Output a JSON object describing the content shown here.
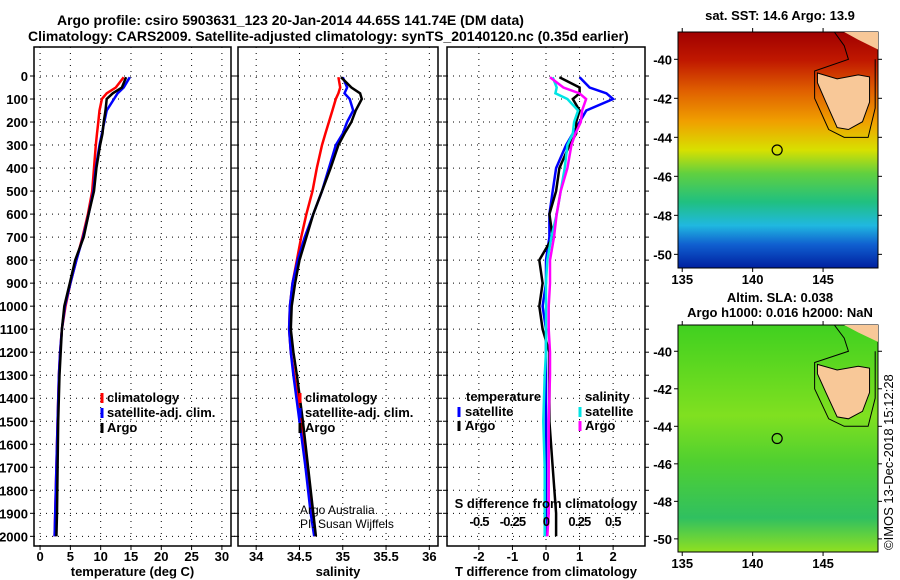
{
  "title_line1": "Argo profile: csiro 5903631_123 20-Jan-2014 44.65S 141.74E (DM data)",
  "title_line2": "Climatology: CARS2009. Satellite-adjusted climatology: synTS_20140120.nc (0.35d earlier)",
  "credit_line1": "Argo Australia",
  "credit_line2": "PI: Susan Wijffels",
  "imos_stamp": "©IMOS 13-Dec-2018 15:12:28",
  "colors": {
    "climatology": "#ff0000",
    "satellite": "#0000ff",
    "argo": "#000000",
    "s_satellite": "#00e5e5",
    "s_argo": "#ff00ff"
  },
  "chart_data": [
    {
      "type": "line",
      "xlabel": "temperature (deg C)",
      "ylabel": "depth",
      "xlim": [
        -1,
        31.5
      ],
      "ylim": [
        2042,
        -126
      ],
      "xticks": [
        0,
        5,
        10,
        15,
        20,
        25,
        30
      ],
      "yticks": [
        0,
        100,
        200,
        300,
        400,
        500,
        600,
        700,
        800,
        900,
        1000,
        1100,
        1200,
        1300,
        1400,
        1500,
        1600,
        1700,
        1800,
        1900,
        2000
      ],
      "depth": [
        5,
        50,
        75,
        100,
        150,
        200,
        250,
        300,
        400,
        500,
        600,
        700,
        800,
        900,
        1000,
        1100,
        1200,
        1300,
        1500,
        1700,
        1900,
        2000
      ],
      "legend": [
        "climatology",
        "satellite-adj. clim.",
        "Argo"
      ],
      "series": [
        {
          "name": "climatology",
          "color": "#ff0000",
          "values": [
            13.8,
            12.5,
            11.0,
            10.2,
            9.8,
            9.6,
            9.4,
            9.2,
            8.9,
            8.6,
            7.9,
            7.0,
            6.0,
            5.0,
            4.2,
            3.6,
            3.3,
            3.1,
            2.9,
            2.7,
            2.5,
            2.4
          ]
        },
        {
          "name": "satellite-adj. clim.",
          "color": "#0000ff",
          "values": [
            14.8,
            13.8,
            12.8,
            12.2,
            11.0,
            10.6,
            10.2,
            9.8,
            9.2,
            8.8,
            8.0,
            7.1,
            6.0,
            5.0,
            4.1,
            3.6,
            3.3,
            3.1,
            2.9,
            2.7,
            2.5,
            2.4
          ]
        },
        {
          "name": "Argo",
          "color": "#000000",
          "values": [
            14.2,
            13.5,
            12.0,
            11.0,
            10.8,
            10.5,
            10.3,
            9.9,
            9.3,
            8.9,
            8.0,
            7.2,
            5.8,
            4.9,
            4.0,
            3.6,
            3.4,
            3.2,
            3.0,
            2.9,
            2.8,
            2.7
          ]
        }
      ]
    },
    {
      "type": "line",
      "xlabel": "salinity",
      "xlim": [
        33.79,
        36.1
      ],
      "ylim": [
        2042,
        -126
      ],
      "xticks": [
        34,
        34.5,
        35,
        35.5,
        36
      ],
      "depth": [
        5,
        50,
        75,
        100,
        150,
        200,
        250,
        300,
        400,
        500,
        600,
        700,
        800,
        900,
        1000,
        1100,
        1200,
        1300,
        1500,
        1700,
        1900,
        2000
      ],
      "legend": [
        "climatology",
        "satellite-adj. clim.",
        "Argo"
      ],
      "series": [
        {
          "name": "climatology",
          "color": "#ff0000",
          "values": [
            34.95,
            34.97,
            34.95,
            34.92,
            34.88,
            34.84,
            34.8,
            34.76,
            34.7,
            34.65,
            34.58,
            34.52,
            34.47,
            34.42,
            34.39,
            34.38,
            34.4,
            34.44,
            34.52,
            34.58,
            34.64,
            34.68
          ]
        },
        {
          "name": "satellite-adj. clim.",
          "color": "#0000ff",
          "values": [
            35.0,
            35.05,
            35.02,
            35.08,
            35.12,
            35.05,
            35.0,
            34.92,
            34.84,
            34.76,
            34.66,
            34.56,
            34.48,
            34.42,
            34.39,
            34.38,
            34.4,
            34.43,
            34.5,
            34.57,
            34.63,
            34.67
          ]
        },
        {
          "name": "Argo",
          "color": "#000000",
          "values": [
            34.98,
            35.1,
            35.2,
            35.22,
            35.15,
            35.1,
            35.02,
            34.95,
            34.86,
            34.76,
            34.66,
            34.58,
            34.5,
            34.45,
            34.41,
            34.4,
            34.43,
            34.47,
            34.54,
            34.6,
            34.66,
            34.69
          ]
        }
      ]
    },
    {
      "type": "line",
      "xlabel": "T difference from climatology",
      "x2label": "S difference from climatology",
      "xlim": [
        -2.95,
        2.95
      ],
      "x2lim": [
        -0.74,
        0.74
      ],
      "ylim": [
        2042,
        -126
      ],
      "xticks": [
        -2,
        -1,
        0,
        1,
        2
      ],
      "x2ticks": [
        -0.5,
        -0.25,
        0,
        0.25,
        0.5
      ],
      "depth": [
        5,
        50,
        75,
        100,
        150,
        200,
        250,
        300,
        400,
        500,
        600,
        700,
        800,
        900,
        1000,
        1100,
        1200,
        1300,
        1500,
        1700,
        1900,
        2000
      ],
      "legend_temperature_title": "temperature",
      "legend_salinity_title": "salinity",
      "legend": [
        "satellite",
        "Argo",
        "satellite",
        "Argo"
      ],
      "series": [
        {
          "name": "T satellite",
          "color": "#0000ff",
          "values": [
            1.0,
            1.3,
            1.8,
            2.0,
            1.2,
            1.0,
            0.8,
            0.6,
            0.3,
            0.2,
            0.1,
            0.1,
            0.0,
            0.0,
            -0.1,
            0.0,
            0.0,
            0.0,
            0.0,
            0.0,
            0.0,
            0.0
          ]
        },
        {
          "name": "T Argo",
          "color": "#000000",
          "values": [
            0.4,
            1.0,
            1.0,
            0.8,
            1.0,
            0.9,
            0.9,
            0.7,
            0.4,
            0.3,
            0.1,
            0.2,
            -0.2,
            -0.1,
            -0.2,
            -0.1,
            0.1,
            0.1,
            0.1,
            0.2,
            0.3,
            0.3
          ]
        },
        {
          "name": "S satellite",
          "color": "#00e5e5",
          "values": [
            0.05,
            0.08,
            0.07,
            0.16,
            0.24,
            0.21,
            0.2,
            0.16,
            0.14,
            0.11,
            0.08,
            0.04,
            0.01,
            0.0,
            0.0,
            0.0,
            0.0,
            -0.01,
            -0.02,
            -0.01,
            -0.01,
            -0.01
          ]
        },
        {
          "name": "S Argo",
          "color": "#ff00ff",
          "values": [
            0.03,
            0.13,
            0.25,
            0.3,
            0.27,
            0.26,
            0.22,
            0.19,
            0.16,
            0.11,
            0.08,
            0.06,
            0.03,
            0.03,
            0.02,
            0.02,
            0.03,
            0.03,
            0.02,
            0.02,
            0.02,
            0.01
          ]
        }
      ]
    },
    {
      "type": "heatmap",
      "title": "sat. SST: 14.6 Argo: 13.9",
      "xticks": [
        135,
        140,
        145
      ],
      "yticks": [
        -40,
        -42,
        -44,
        -46,
        -48,
        -50
      ],
      "xlim": [
        134.7,
        148.9
      ],
      "ylim": [
        -38.6,
        -50.7
      ],
      "marker": [
        141.74,
        -44.65
      ]
    },
    {
      "type": "heatmap",
      "title": "Altim. SLA: 0.038",
      "subtitle": "Argo h1000: 0.016 h2000: NaN",
      "xticks": [
        135,
        140,
        145
      ],
      "yticks": [
        -40,
        -42,
        -44,
        -46,
        -48,
        -50
      ],
      "xlim": [
        134.7,
        148.9
      ],
      "ylim": [
        -38.6,
        -50.7
      ],
      "marker": [
        141.74,
        -44.65
      ]
    }
  ]
}
